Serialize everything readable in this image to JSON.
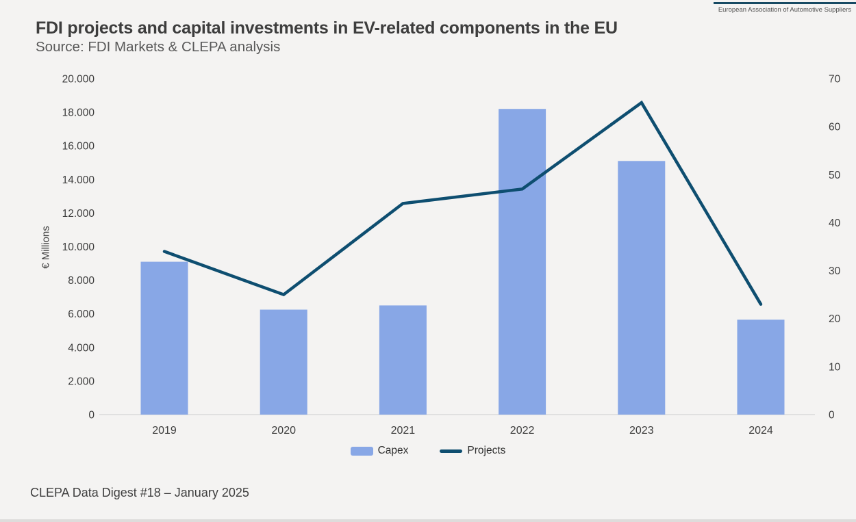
{
  "header": {
    "title": "FDI projects and capital investments in EV-related components in the EU",
    "subtitle": "Source: FDI Markets & CLEPA analysis",
    "logo_caption": "European Association of Automotive Suppliers"
  },
  "footer": {
    "caption": "CLEPA Data Digest #18 – January 2025"
  },
  "chart_data": {
    "type": "bar+line",
    "title": "FDI projects and capital investments in EV-related components in the EU",
    "categories": [
      "2019",
      "2020",
      "2021",
      "2022",
      "2023",
      "2024"
    ],
    "series": [
      {
        "name": "Capex",
        "type": "bar",
        "axis": "left",
        "values": [
          9100,
          6250,
          6500,
          18200,
          15100,
          5650
        ],
        "color": "#88a7e6"
      },
      {
        "name": "Projects",
        "type": "line",
        "axis": "right",
        "values": [
          34,
          25,
          44,
          47,
          65,
          23
        ],
        "color": "#0e4e70"
      }
    ],
    "left_axis": {
      "title": "€ Millions",
      "min": 0,
      "max": 20000,
      "tick_step": 2000,
      "tick_labels": [
        "0",
        "2.000",
        "4.000",
        "6.000",
        "8.000",
        "10.000",
        "12.000",
        "14.000",
        "16.000",
        "18.000",
        "20.000"
      ]
    },
    "right_axis": {
      "min": 0,
      "max": 70,
      "tick_step": 10,
      "tick_labels": [
        "0",
        "10",
        "20",
        "30",
        "40",
        "50",
        "60",
        "70"
      ]
    },
    "grid": false,
    "legend_position": "bottom",
    "style": {
      "axis_line_color": "#d9d9d9",
      "tick_text_color": "#3d3d3d",
      "background": "#f4f3f2"
    }
  }
}
